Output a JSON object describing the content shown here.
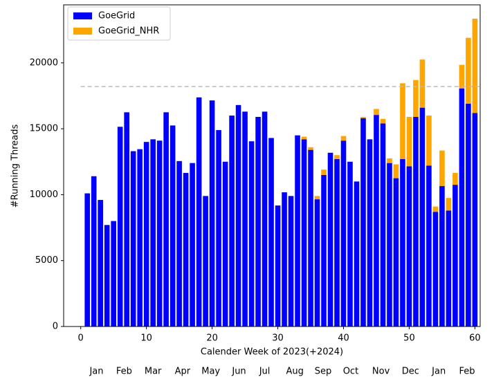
{
  "chart_data": {
    "type": "stacked_bar",
    "x_label": "Calender Week of 2023(+2024)",
    "y_label": "#Running Threads",
    "x": [
      1,
      2,
      3,
      4,
      5,
      6,
      7,
      8,
      9,
      10,
      11,
      12,
      13,
      14,
      15,
      16,
      17,
      18,
      19,
      20,
      21,
      22,
      23,
      24,
      25,
      26,
      27,
      28,
      29,
      30,
      31,
      32,
      33,
      34,
      35,
      36,
      37,
      38,
      39,
      40,
      41,
      42,
      43,
      44,
      45,
      46,
      47,
      48,
      49,
      50,
      51,
      52,
      53,
      54,
      55,
      56,
      57,
      58,
      59,
      60
    ],
    "series": [
      {
        "name": "GoeGrid",
        "color": "#0000ff",
        "values": [
          10100,
          11400,
          9600,
          7700,
          8000,
          15150,
          16250,
          13300,
          13450,
          14000,
          14200,
          14100,
          16250,
          15250,
          12550,
          11650,
          12400,
          17380,
          9900,
          17150,
          14900,
          12500,
          16000,
          16800,
          16300,
          14050,
          15900,
          16300,
          14300,
          9180,
          10180,
          9900,
          14500,
          14200,
          13400,
          9650,
          11500,
          13180,
          12700,
          14100,
          12500,
          11000,
          15800,
          14200,
          16050,
          15400,
          12400,
          11250,
          12700,
          12150,
          15900,
          16600,
          12200,
          8700,
          10650,
          8800,
          10750,
          18050,
          16900,
          16200
        ]
      },
      {
        "name": "GoeGrid_NHR",
        "color": "#ffa500",
        "values": [
          0,
          0,
          0,
          0,
          0,
          0,
          0,
          0,
          0,
          0,
          0,
          0,
          0,
          0,
          0,
          0,
          0,
          0,
          0,
          0,
          0,
          0,
          0,
          0,
          0,
          0,
          0,
          0,
          0,
          0,
          0,
          0,
          0,
          200,
          200,
          250,
          400,
          0,
          300,
          350,
          0,
          0,
          100,
          0,
          450,
          350,
          350,
          1050,
          5750,
          3750,
          2800,
          3650,
          3800,
          400,
          2700,
          950,
          900,
          1800,
          5000,
          7150
        ]
      }
    ],
    "hline": 18200,
    "xlim": [
      -2.6,
      60.8
    ],
    "ylim": [
      0,
      24400
    ],
    "xticks": [
      0,
      10,
      20,
      30,
      40,
      50,
      60
    ],
    "yticks": [
      0,
      5000,
      10000,
      15000,
      20000
    ],
    "month_ticks": [
      {
        "value": 2.4,
        "label": "Jan"
      },
      {
        "value": 6.6,
        "label": "Feb"
      },
      {
        "value": 11.0,
        "label": "Mar"
      },
      {
        "value": 15.5,
        "label": "Apr"
      },
      {
        "value": 19.8,
        "label": "May"
      },
      {
        "value": 24.1,
        "label": "Jun"
      },
      {
        "value": 28.0,
        "label": "Jul"
      },
      {
        "value": 32.6,
        "label": "Aug"
      },
      {
        "value": 36.9,
        "label": "Sep"
      },
      {
        "value": 41.1,
        "label": "Oct"
      },
      {
        "value": 45.7,
        "label": "Nov"
      },
      {
        "value": 50.2,
        "label": "Dec"
      },
      {
        "value": 54.5,
        "label": "Jan"
      },
      {
        "value": 58.8,
        "label": "Feb"
      }
    ],
    "legend": "upper left"
  }
}
